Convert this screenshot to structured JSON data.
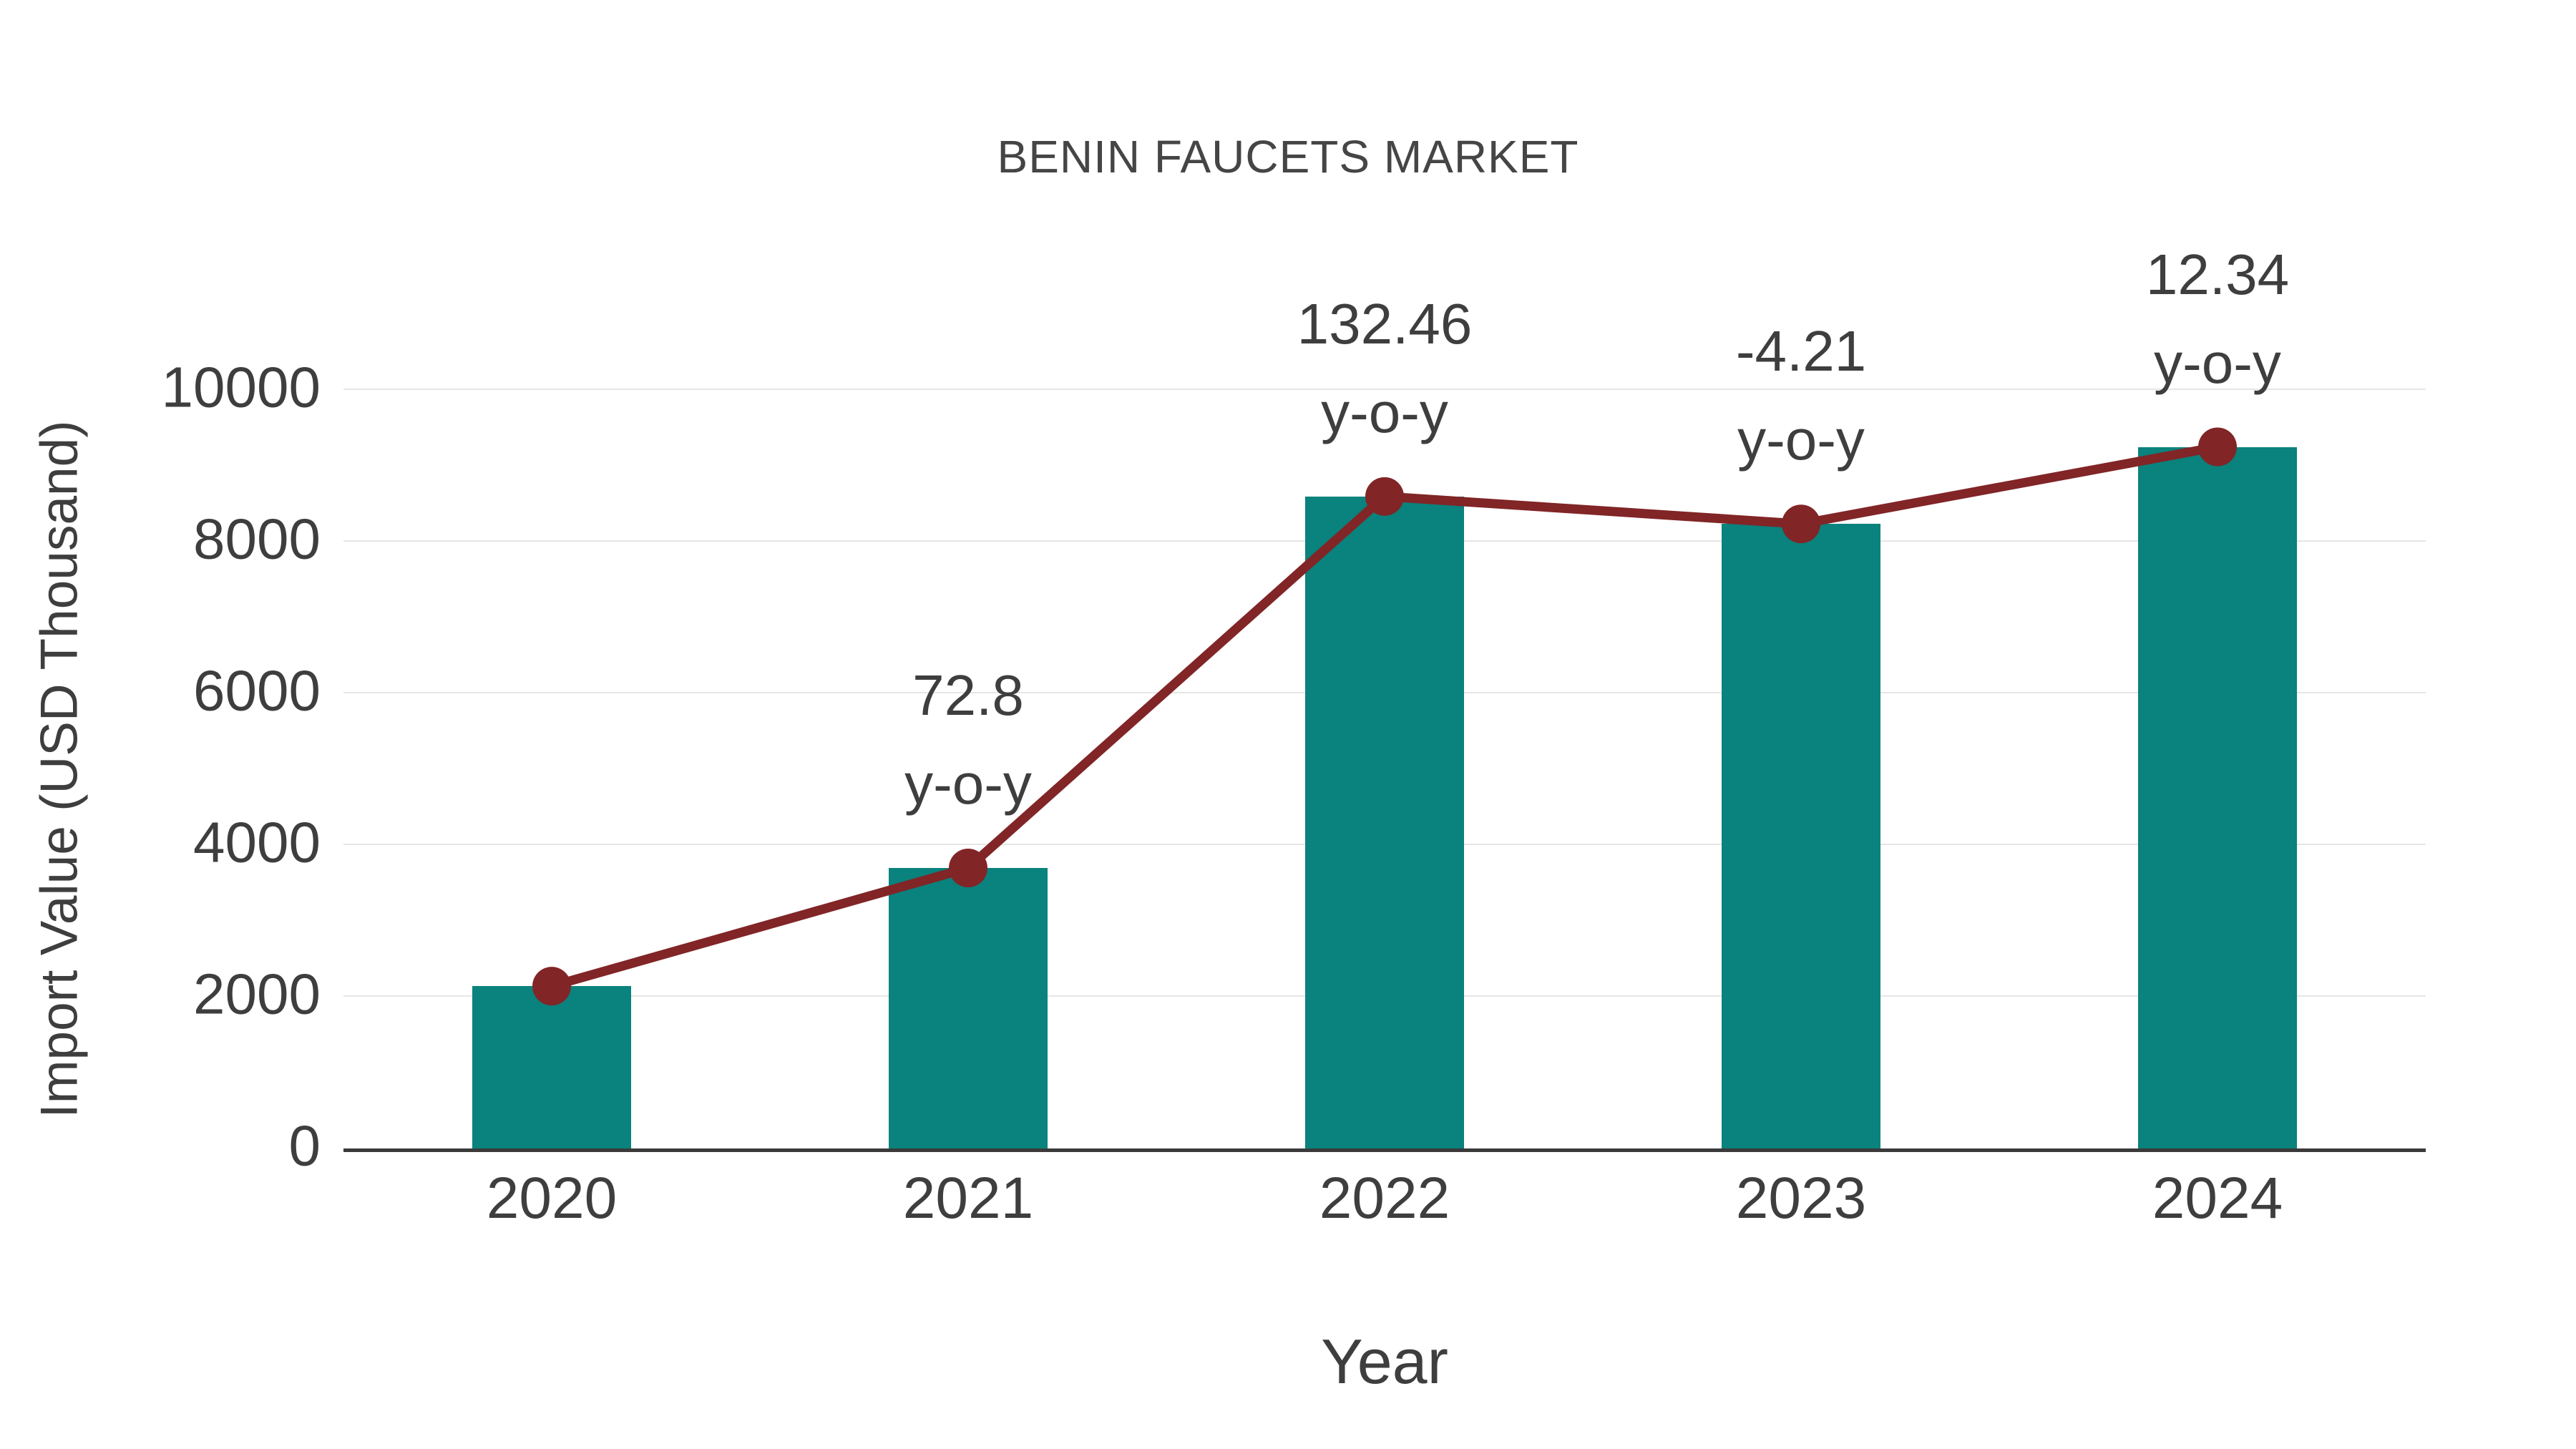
{
  "chart_data": {
    "type": "bar",
    "title": "BENIN FAUCETS MARKET",
    "xlabel": "Year",
    "ylabel": "Import Value (USD Thousand)",
    "categories": [
      "2020",
      "2021",
      "2022",
      "2023",
      "2024"
    ],
    "series": [
      {
        "name": "import-value-bars",
        "type": "bar",
        "color": "#0a827d",
        "values": [
          2140,
          3698,
          8596,
          8234,
          9250
        ]
      },
      {
        "name": "import-value-trend-line",
        "type": "line",
        "color": "#812527",
        "values": [
          2140,
          3698,
          8596,
          8234,
          9250
        ]
      }
    ],
    "annotations": [
      {
        "category": "2021",
        "lines": [
          "72.8",
          "y-o-y"
        ]
      },
      {
        "category": "2022",
        "lines": [
          "132.46",
          "y-o-y"
        ]
      },
      {
        "category": "2023",
        "lines": [
          "-4.21",
          "y-o-y"
        ]
      },
      {
        "category": "2024",
        "lines": [
          "12.34",
          "y-o-y"
        ]
      }
    ],
    "ylim": [
      0,
      10000
    ],
    "yticks": [
      0,
      2000,
      4000,
      6000,
      8000,
      10000
    ],
    "grid": "horizontal-only",
    "legend": "none",
    "colors": {
      "bar": "#0a827d",
      "line": "#812527",
      "marker": "#812527",
      "gridline": "#e6e6e6",
      "axis_line": "#3a3a3a",
      "text": "#3e3e3e",
      "background": "#ffffff"
    }
  }
}
